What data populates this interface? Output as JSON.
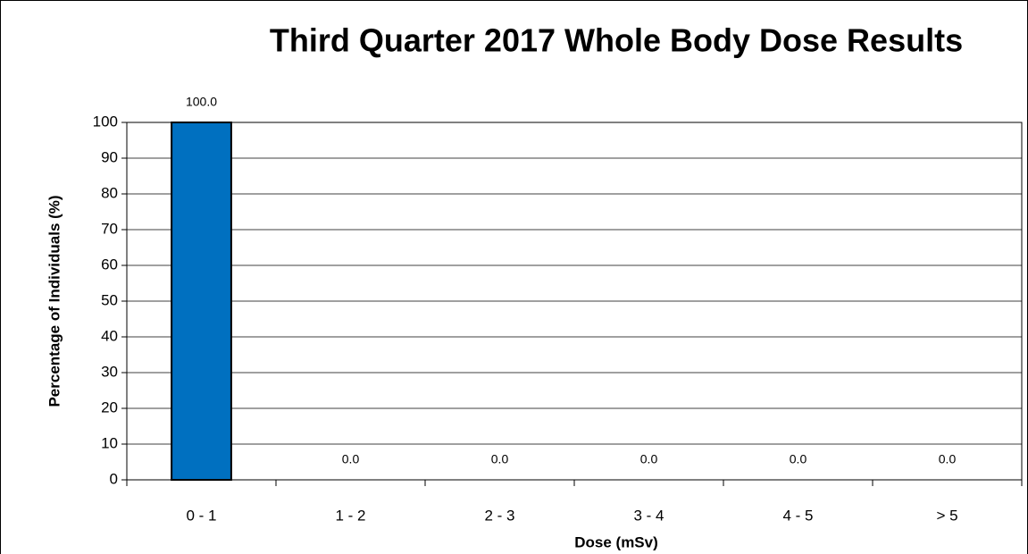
{
  "chart_data": {
    "type": "bar",
    "title": "Third Quarter 2017 Whole Body Dose Results",
    "x_label": "Dose (mSv)",
    "y_label": "Percentage of Individuals (%)",
    "categories": [
      "0 - 1",
      "1 - 2",
      "2 - 3",
      "3 - 4",
      "4 - 5",
      "> 5"
    ],
    "values": [
      100,
      0,
      0,
      0,
      0,
      0
    ],
    "value_labels": [
      "100.0",
      "0.0",
      "0.0",
      "0.0",
      "0.0",
      "0.0"
    ],
    "color": "#0070c0",
    "ylim": [
      0,
      100
    ],
    "yticks": [
      0,
      10,
      20,
      30,
      40,
      50,
      60,
      70,
      80,
      90,
      100
    ],
    "grid": true
  }
}
